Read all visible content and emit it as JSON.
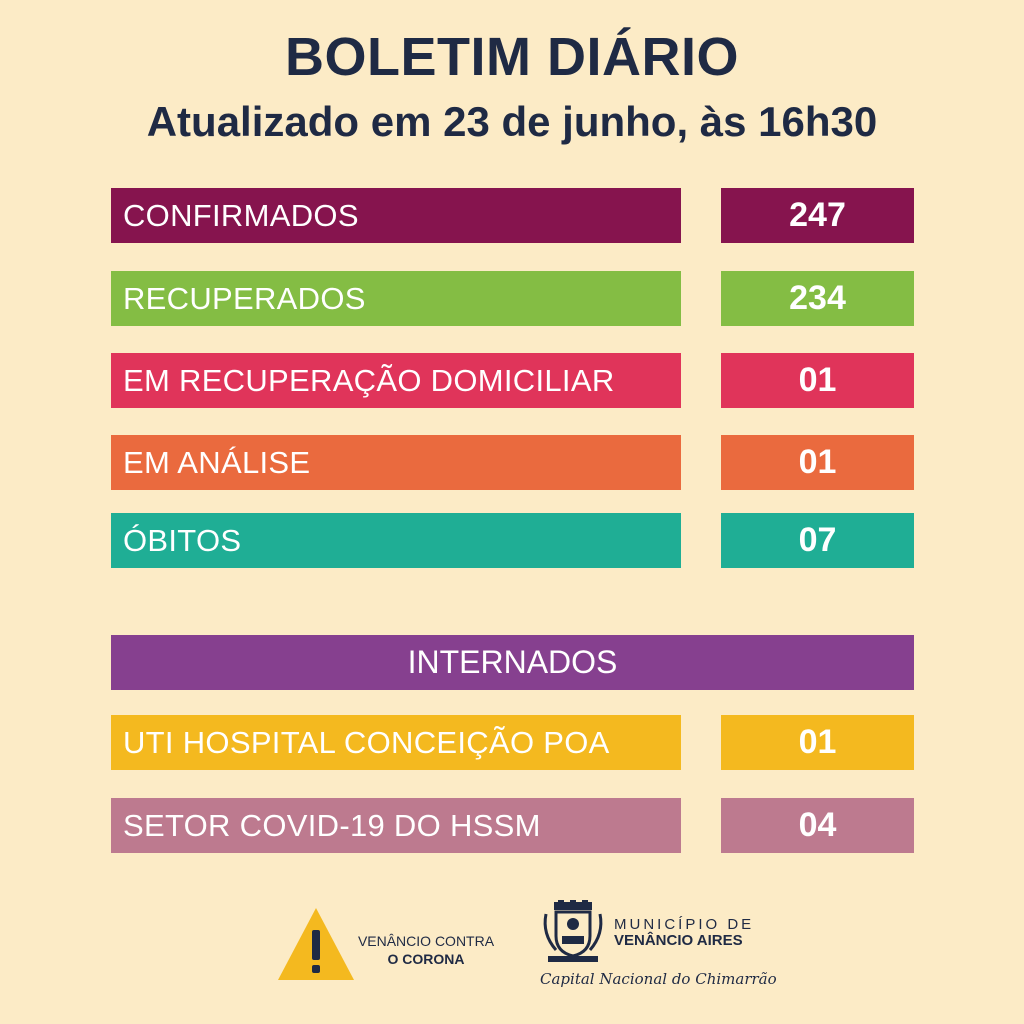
{
  "header": {
    "title": "BOLETIM DIÁRIO",
    "subtitle": "Atualizado em 23 de junho, às 16h30"
  },
  "rows": [
    {
      "label": "CONFIRMADOS",
      "value": "247",
      "color": "#86144e"
    },
    {
      "label": "RECUPERADOS",
      "value": "234",
      "color": "#84bd44"
    },
    {
      "label": "EM RECUPERAÇÃO DOMICILIAR",
      "value": "01",
      "color": "#e0345a"
    },
    {
      "label": "EM ANÁLISE",
      "value": "01",
      "color": "#ea6a3e"
    },
    {
      "label": "ÓBITOS",
      "value": "07",
      "color": "#1fae95"
    }
  ],
  "internados": {
    "title": "INTERNADOS",
    "color": "#86408f",
    "rows": [
      {
        "label": "UTI HOSPITAL CONCEIÇÃO POA",
        "value": "01",
        "color": "#f4b91f"
      },
      {
        "label": "SETOR COVID-19 DO HSSM",
        "value": "04",
        "color": "#bd7a8f"
      }
    ]
  },
  "footer": {
    "campaign_line1": "VENÂNCIO CONTRA",
    "campaign_line2": "O CORONA",
    "campaign_icon": "warning-triangle-icon",
    "municipality_line1": "MUNICÍPIO DE",
    "municipality_line2": "VENÂNCIO AIRES",
    "slogan": "Capital Nacional do Chimarrão",
    "seal_icon": "coat-of-arms-icon"
  }
}
